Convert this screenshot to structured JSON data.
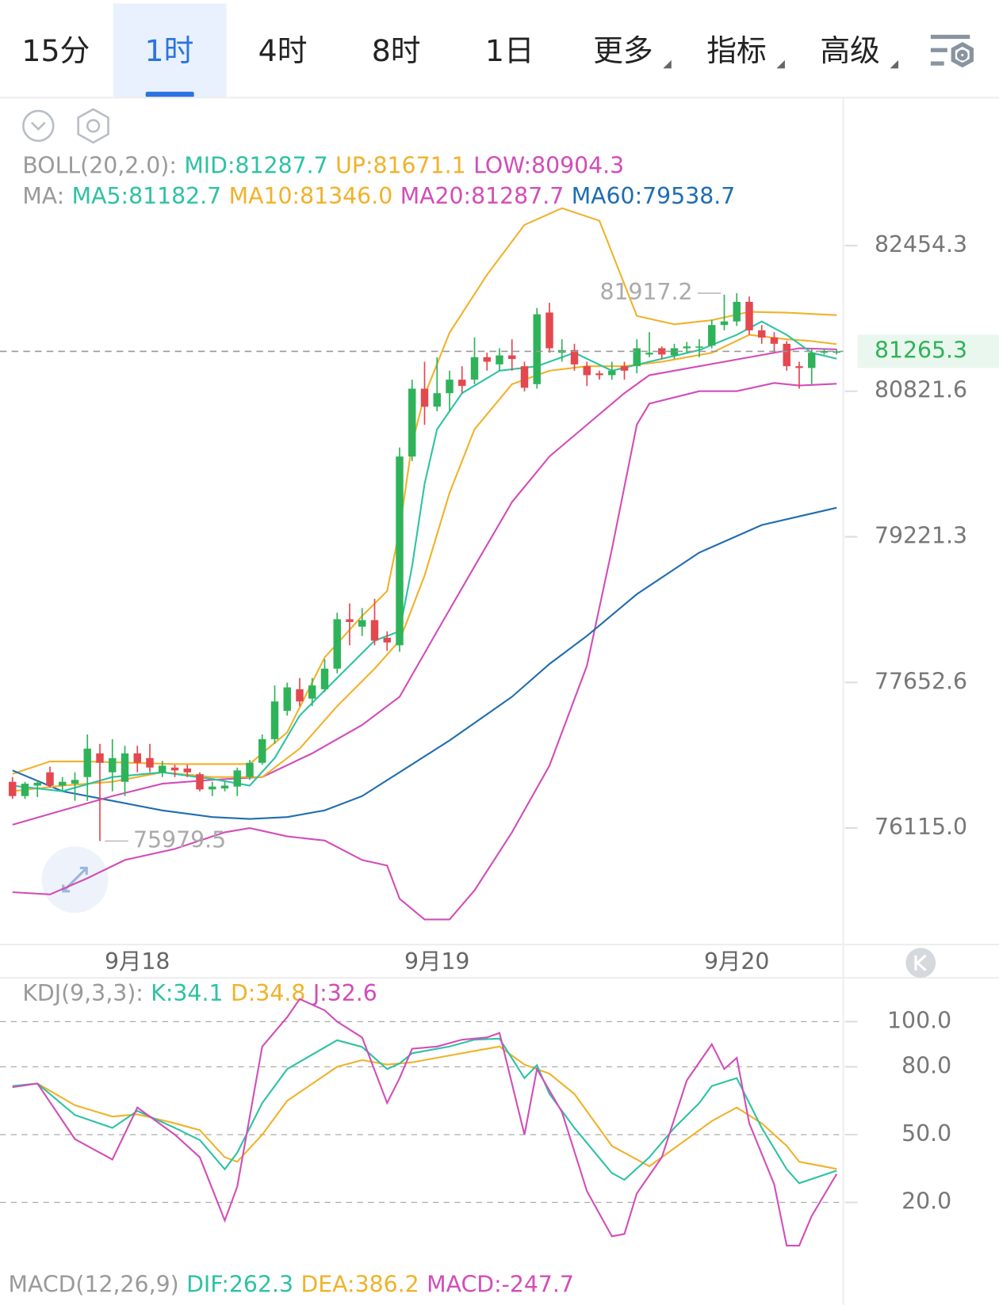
{
  "tabs": [
    "15分",
    "1时",
    "4时",
    "8时",
    "1日"
  ],
  "menus": [
    "更多",
    "指标",
    "高级"
  ],
  "selected_tab": 1,
  "chart_data": [
    {
      "type": "candlestick",
      "categories": [
        null,
        null,
        null,
        null,
        null,
        null,
        null,
        null,
        null,
        null,
        "9月18",
        null,
        null,
        null,
        null,
        null,
        null,
        null,
        null,
        null,
        null,
        null,
        null,
        null,
        null,
        null,
        null,
        null,
        null,
        null,
        null,
        null,
        null,
        null,
        "9月19",
        null,
        null,
        null,
        null,
        null,
        null,
        null,
        null,
        null,
        null,
        null,
        null,
        null,
        null,
        null,
        null,
        null,
        null,
        null,
        null,
        null,
        null,
        null,
        "9月20",
        null,
        null,
        null,
        null,
        null,
        null,
        null,
        null
      ],
      "open": [
        76600,
        76450,
        76560,
        76700,
        76560,
        76580,
        76650,
        76900,
        76700,
        76600,
        76900,
        76850,
        76700,
        76750,
        76740,
        76680,
        76520,
        76530,
        76550,
        76650,
        76800,
        77050,
        77350,
        77580,
        77480,
        77580,
        77800,
        78330,
        78250,
        78320,
        78130,
        78050,
        80100,
        80850,
        80650,
        80800,
        80950,
        80950,
        81200,
        81120,
        81220,
        81100,
        80900,
        81700,
        81250,
        81280,
        81100,
        81020,
        81000,
        81100,
        81100,
        81230,
        81300,
        81220,
        81300,
        81310,
        81330,
        81560,
        81600,
        81820,
        81500,
        81420,
        81350,
        81100,
        81080,
        81250,
        81250
      ],
      "high": [
        76650,
        76600,
        76620,
        76760,
        76650,
        76700,
        77100,
        77000,
        77050,
        76980,
        76980,
        77000,
        76820,
        76780,
        76780,
        76700,
        76600,
        76600,
        76750,
        76830,
        77100,
        77620,
        77650,
        77700,
        77700,
        77900,
        78400,
        78500,
        78450,
        78550,
        78200,
        80200,
        80950,
        81150,
        81200,
        81050,
        81100,
        81420,
        81250,
        81300,
        81400,
        81150,
        81750,
        81810,
        81400,
        81350,
        81150,
        81050,
        81150,
        81150,
        81400,
        81480,
        81320,
        81350,
        81370,
        81400,
        81620,
        81900,
        81917.2,
        81880,
        81560,
        81480,
        81380,
        81150,
        81290,
        81300,
        81290
      ],
      "low": [
        76420,
        76420,
        76440,
        76540,
        76500,
        76400,
        76400,
        75979.5,
        76500,
        76450,
        76700,
        76700,
        76650,
        76650,
        76650,
        76500,
        76450,
        76500,
        76450,
        76620,
        76780,
        77000,
        77300,
        77400,
        77400,
        77550,
        77750,
        78050,
        78150,
        78050,
        77990,
        77980,
        80050,
        80450,
        80600,
        80600,
        80800,
        80900,
        81050,
        81050,
        81050,
        80820,
        80850,
        81250,
        81150,
        81050,
        80880,
        80950,
        80950,
        80950,
        81020,
        81200,
        81180,
        81180,
        81250,
        81200,
        81300,
        81500,
        81550,
        81450,
        81350,
        81250,
        81050,
        80850,
        80900,
        81230,
        81230
      ],
      "close": [
        76450,
        76580,
        76590,
        76560,
        76600,
        76620,
        76950,
        76800,
        76850,
        76900,
        76800,
        76750,
        76770,
        76720,
        76700,
        76520,
        76550,
        76560,
        76720,
        76800,
        77050,
        77450,
        77600,
        77450,
        77620,
        77800,
        78330,
        78300,
        78320,
        78100,
        78080,
        80100,
        80850,
        80650,
        80800,
        80950,
        80880,
        81200,
        81150,
        81220,
        81180,
        80860,
        81680,
        81300,
        81280,
        81120,
        81000,
        81000,
        81050,
        81050,
        81300,
        81250,
        81230,
        81300,
        81320,
        81320,
        81560,
        81600,
        81820,
        81500,
        81420,
        81350,
        81100,
        81080,
        81250,
        81270,
        81265.3
      ],
      "up_color": "#2fb35a",
      "down_color": "#e4484f",
      "log_scale": true,
      "ylim": [
        74907,
        84148
      ],
      "yticks": [
        82454.3,
        80821.6,
        79221.3,
        77652.6,
        {
          "value": 76115,
          "label": "76115.0"
        }
      ],
      "last_price": 81265.3,
      "last_price_color": "#2fb35a",
      "annotations": [
        {
          "index": 58,
          "value": 81917.2,
          "side": "left"
        },
        {
          "index": 7,
          "value": 75979.5,
          "side": "right"
        }
      ],
      "overlays": [
        {
          "color": "#f0b22a",
          "x": [
            0,
            3,
            6,
            13,
            19,
            20,
            22,
            25,
            28,
            30,
            31,
            32,
            33,
            35,
            38,
            41,
            44,
            47,
            50,
            53,
            56,
            59,
            62,
            66
          ],
          "values": [
            76683,
            76814,
            76814,
            76787,
            76787,
            76901,
            77122,
            77920,
            78365,
            78633,
            79296,
            80244,
            80777,
            81474,
            82125,
            82690,
            82879,
            82737,
            81661,
            81568,
            81614,
            81708,
            81699,
            81671.1
          ]
        },
        {
          "color": "#d24db8",
          "x": [
            0,
            3,
            6,
            9,
            13,
            17,
            19,
            22,
            25,
            28,
            30,
            31,
            33,
            35,
            37,
            40,
            43,
            46,
            48,
            50,
            51,
            55,
            58,
            61,
            63,
            66
          ],
          "values": [
            75447,
            75424,
            75592,
            75782,
            75897,
            76071,
            76115,
            76028,
            75985,
            75782,
            75724,
            75379,
            75165,
            75165,
            75466,
            76071,
            76770,
            77830,
            79086,
            80453,
            80684,
            80822,
            80822,
            80914,
            80885,
            80904.3
          ]
        },
        {
          "color": "#1f6db0",
          "x": [
            0,
            4,
            8,
            12,
            16,
            19,
            22,
            25,
            28,
            30,
            35,
            40,
            43,
            46,
            50,
            55,
            60,
            66
          ],
          "values": [
            76720,
            76500,
            76400,
            76300,
            76230,
            76210,
            76230,
            76300,
            76450,
            76617,
            77036,
            77500,
            77850,
            78150,
            78600,
            79050,
            79350,
            79538.7
          ]
        },
        {
          "color": "#d24db8",
          "x": [
            0,
            4,
            8,
            12,
            16,
            20,
            24,
            28,
            31,
            34,
            37,
            40,
            43,
            46,
            49,
            51,
            55,
            59,
            63,
            66
          ],
          "values": [
            76150,
            76300,
            76450,
            76580,
            76620,
            76650,
            76900,
            77200,
            77500,
            78200,
            78900,
            79600,
            80100,
            80450,
            80800,
            81000,
            81100,
            81200,
            81300,
            81287.7
          ]
        },
        {
          "color": "#f0b22a",
          "x": [
            0,
            4,
            8,
            12,
            16,
            20,
            23,
            26,
            29,
            31,
            33,
            35,
            37,
            40,
            43,
            46,
            49,
            52,
            56,
            59,
            62,
            64,
            66
          ],
          "values": [
            76500,
            76560,
            76600,
            76700,
            76650,
            76650,
            76950,
            77400,
            77800,
            78100,
            78800,
            79700,
            80400,
            80900,
            81050,
            81100,
            81100,
            81150,
            81250,
            81450,
            81400,
            81380,
            81346
          ]
        },
        {
          "color": "#2ec2a4",
          "x": [
            0,
            4,
            8,
            12,
            16,
            19,
            21,
            23,
            26,
            29,
            31,
            32,
            33,
            34,
            36,
            39,
            42,
            45,
            48,
            51,
            55,
            58,
            60,
            62,
            64,
            66
          ],
          "values": [
            76560,
            76500,
            76650,
            76700,
            76630,
            76560,
            76850,
            77300,
            77700,
            78100,
            78200,
            78900,
            79800,
            80400,
            80800,
            81050,
            81100,
            81250,
            81050,
            81150,
            81280,
            81450,
            81600,
            81450,
            81250,
            81182.7
          ]
        }
      ],
      "headers": [
        {
          "label": "BOLL(20,2.0):",
          "items": [
            {
              "label": "MID:",
              "value": 81287.7,
              "color": "#2ec2a4"
            },
            {
              "label": "UP:",
              "value": 81671.1,
              "color": "#f0b22a"
            },
            {
              "label": "LOW:",
              "value": 80904.3,
              "color": "#d24db8"
            }
          ]
        },
        {
          "label": "MA:",
          "items": [
            {
              "label": "MA5:",
              "value": 81182.7,
              "color": "#2ec2a4"
            },
            {
              "label": "MA10:",
              "value": 81346,
              "value_label": "81346.0",
              "color": "#f0b22a"
            },
            {
              "label": "MA20:",
              "value": 81287.7,
              "color": "#d24db8"
            },
            {
              "label": "MA60:",
              "value": 79538.7,
              "color": "#1f6db0"
            }
          ]
        }
      ]
    },
    {
      "type": "line",
      "ylim": [
        -11.3,
        119.4
      ],
      "yticks": [
        {
          "value": 100,
          "label": "100.0"
        },
        {
          "value": 80,
          "label": "80.0"
        },
        {
          "value": 50,
          "label": "50.0"
        },
        {
          "value": 20,
          "label": "20.0"
        }
      ],
      "grid": true,
      "series": [
        {
          "color": "#f0b22a",
          "x": [
            0,
            2,
            5,
            8,
            10,
            13,
            15,
            17,
            18,
            20,
            22,
            26,
            28,
            30,
            32,
            35,
            37,
            39,
            41,
            43,
            45,
            48,
            51,
            53,
            55,
            56,
            58,
            60,
            62,
            63,
            66
          ],
          "values": [
            71.5,
            72.6,
            63,
            58,
            59,
            55,
            52,
            40,
            38,
            50,
            65,
            80,
            83,
            81,
            82,
            85,
            87,
            89,
            81,
            77,
            68,
            45,
            36,
            44,
            52,
            56,
            62,
            55,
            45,
            38,
            34.8
          ]
        },
        {
          "color": "#2ec2a4",
          "x": [
            0,
            2,
            5,
            8,
            10,
            13,
            15,
            17,
            18,
            20,
            22,
            26,
            28,
            30,
            31,
            32,
            35,
            37,
            39,
            41,
            42,
            43,
            45,
            48,
            49,
            51,
            53,
            55,
            56,
            58,
            60,
            62,
            63,
            66
          ],
          "values": [
            71.5,
            72.6,
            58.7,
            53,
            60.5,
            53,
            47.6,
            34.7,
            42,
            64,
            79,
            91.8,
            88.8,
            79,
            81.5,
            86,
            89,
            92,
            92.5,
            75,
            80.7,
            68,
            53,
            33,
            30,
            40,
            53,
            64,
            71.5,
            75,
            53,
            34.7,
            28.5,
            34.1
          ]
        },
        {
          "color": "#d24db8",
          "x": [
            0,
            2,
            5,
            8,
            10,
            13,
            15,
            17,
            18,
            20,
            22,
            23,
            25,
            26,
            28,
            30,
            31,
            32,
            34,
            36,
            38,
            39,
            41,
            42,
            44,
            46,
            48,
            49,
            50,
            52,
            54,
            55,
            56,
            57,
            58,
            59,
            61,
            62,
            63,
            64,
            66
          ],
          "values": [
            71,
            72.6,
            48,
            39,
            62,
            50,
            40,
            12,
            27,
            89,
            102,
            110,
            105,
            100,
            93,
            64,
            75,
            88,
            89,
            92,
            93,
            95,
            50,
            79,
            60,
            25,
            5,
            6,
            24,
            40,
            74,
            82,
            90,
            79,
            84,
            55,
            28,
            0.9,
            0.9,
            14,
            32.6
          ]
        }
      ],
      "header": {
        "label": "KDJ(9,3,3):",
        "items": [
          {
            "label": "K:",
            "value": 34.1,
            "color": "#2ec2a4"
          },
          {
            "label": "D:",
            "value": 34.8,
            "color": "#f0b22a"
          },
          {
            "label": "J:",
            "value": 32.6,
            "color": "#d24db8"
          }
        ]
      }
    },
    {
      "type": "macd",
      "header": {
        "label": "MACD(12,26,9)",
        "items": [
          {
            "label": "DIF:",
            "value": 262.3,
            "color": "#2ec2a4"
          },
          {
            "label": "DEA:",
            "value": 386.2,
            "color": "#f0b22a"
          },
          {
            "label": "MACD:",
            "value": -247.7,
            "color": "#d24db8"
          }
        ]
      }
    }
  ]
}
